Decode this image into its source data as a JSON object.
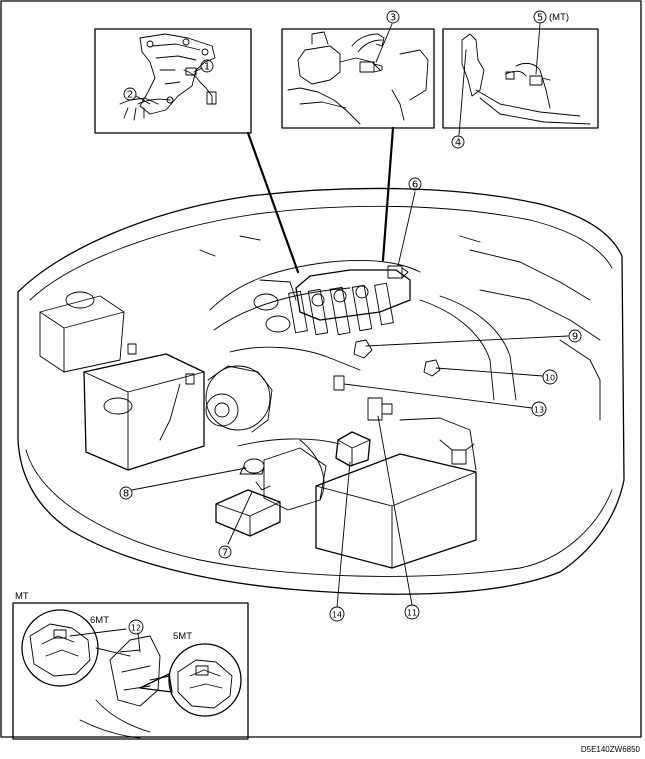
{
  "callouts": {
    "c1": "1",
    "c2": "2",
    "c3": "3",
    "c4": "4",
    "c5": "5",
    "c6": "6",
    "c7": "7",
    "c8": "8",
    "c9": "9",
    "c10": "10",
    "c11": "11",
    "c12": "12",
    "c13": "13",
    "c14": "14"
  },
  "labels": {
    "c5_suffix": "(MT)",
    "inset_mt": "MT",
    "six_mt": "6MT",
    "five_mt": "5MT"
  },
  "figure_code": "D5E140ZW6850"
}
